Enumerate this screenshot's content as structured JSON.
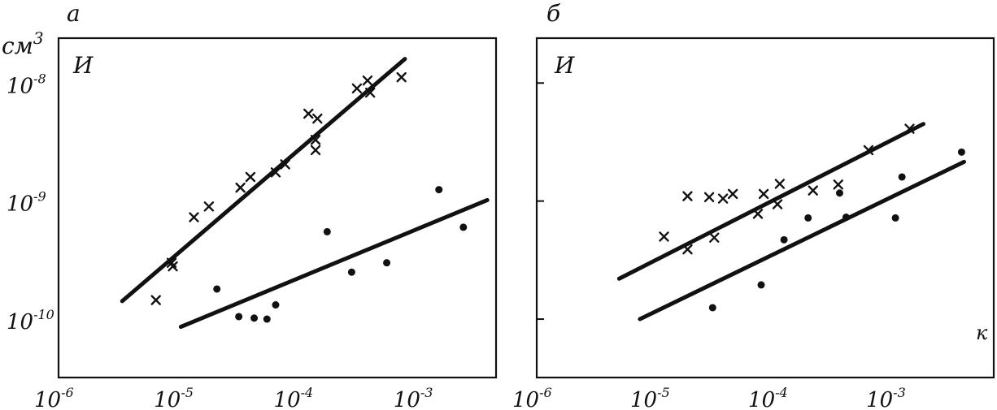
{
  "chart_data": [
    {
      "type": "scatter",
      "panel_label": "а",
      "inner_label": "И",
      "ylabel": "см",
      "ylabel_power": "3",
      "xlabel": "",
      "x_scale": "log",
      "y_scale": "log",
      "xlim": [
        1e-06,
        0.0045
      ],
      "ylim": [
        3.2e-11,
        2.4e-08
      ],
      "x_ticks": [
        {
          "value": 1e-06,
          "base": "10",
          "exp": "-6"
        },
        {
          "value": 1e-05,
          "base": "10",
          "exp": "-5"
        },
        {
          "value": 0.0001,
          "base": "10",
          "exp": "-4"
        },
        {
          "value": 0.001,
          "base": "10",
          "exp": "-3"
        }
      ],
      "y_ticks": [
        {
          "value": 1e-08,
          "base": "10",
          "exp": "-8"
        },
        {
          "value": 1e-09,
          "base": "10",
          "exp": "-9"
        },
        {
          "value": 1e-10,
          "base": "10",
          "exp": "-10"
        }
      ],
      "grid": false,
      "series": [
        {
          "marker": "x",
          "points": [
            {
              "x": 6.5e-06,
              "y": 1.45e-10
            },
            {
              "x": 9e-06,
              "y": 2.8e-10
            },
            {
              "x": 8.8e-06,
              "y": 3e-10
            },
            {
              "x": 1.35e-05,
              "y": 7.3e-10
            },
            {
              "x": 1.8e-05,
              "y": 9e-10
            },
            {
              "x": 3.3e-05,
              "y": 1.3e-09
            },
            {
              "x": 4e-05,
              "y": 1.6e-09
            },
            {
              "x": 6.5e-05,
              "y": 1.75e-09
            },
            {
              "x": 7.8e-05,
              "y": 2.05e-09
            },
            {
              "x": 0.000122,
              "y": 5.5e-09
            },
            {
              "x": 0.000145,
              "y": 5e-09
            },
            {
              "x": 0.00014,
              "y": 3.3e-09
            },
            {
              "x": 0.00014,
              "y": 2.7e-09
            },
            {
              "x": 0.00031,
              "y": 9e-09
            },
            {
              "x": 0.00038,
              "y": 1.05e-08
            },
            {
              "x": 0.0004,
              "y": 8.3e-09
            },
            {
              "x": 0.00073,
              "y": 1.12e-08
            }
          ],
          "fit": {
            "x": [
              3.4e-06,
              0.00078
            ],
            "y": [
              1.42e-10,
              1.6e-08
            ]
          }
        },
        {
          "marker": "dot",
          "points": [
            {
              "x": 2.1e-05,
              "y": 1.8e-10
            },
            {
              "x": 3.2e-05,
              "y": 1.05e-10
            },
            {
              "x": 4.3e-05,
              "y": 1.02e-10
            },
            {
              "x": 5.5e-05,
              "y": 1e-10
            },
            {
              "x": 6.5e-05,
              "y": 1.32e-10
            },
            {
              "x": 0.000175,
              "y": 5.5e-10
            },
            {
              "x": 0.00028,
              "y": 2.5e-10
            },
            {
              "x": 0.00055,
              "y": 3e-10
            },
            {
              "x": 0.0015,
              "y": 1.25e-09
            },
            {
              "x": 0.0024,
              "y": 6e-10
            }
          ],
          "fit": {
            "x": [
              1.05e-05,
              0.0038
            ],
            "y": [
              8.6e-11,
              1.02e-09
            ]
          }
        }
      ]
    },
    {
      "type": "scatter",
      "panel_label": "б",
      "inner_label": "И",
      "xlabel": "к",
      "ylabel": "",
      "x_scale": "log",
      "y_scale": "log",
      "xlim": [
        1e-06,
        0.0075
      ],
      "ylim": [
        3.2e-11,
        2.4e-08
      ],
      "x_ticks": [
        {
          "value": 1e-06,
          "base": "10",
          "exp": "-6"
        },
        {
          "value": 1e-05,
          "base": "10",
          "exp": "-5"
        },
        {
          "value": 0.0001,
          "base": "10",
          "exp": "-4"
        },
        {
          "value": 0.001,
          "base": "10",
          "exp": "-3"
        }
      ],
      "y_ticks": [
        {
          "value": 1e-08,
          "base": "",
          "exp": ""
        },
        {
          "value": 1e-09,
          "base": "",
          "exp": ""
        },
        {
          "value": 1e-10,
          "base": "",
          "exp": ""
        }
      ],
      "grid": false,
      "series": [
        {
          "marker": "x",
          "points": [
            {
              "x": 1.2e-05,
              "y": 5e-10
            },
            {
              "x": 1.9e-05,
              "y": 1.1e-09
            },
            {
              "x": 1.9e-05,
              "y": 3.9e-10
            },
            {
              "x": 2.9e-05,
              "y": 1.08e-09
            },
            {
              "x": 3.2e-05,
              "y": 4.9e-10
            },
            {
              "x": 3.8e-05,
              "y": 1.05e-09
            },
            {
              "x": 4.6e-05,
              "y": 1.15e-09
            },
            {
              "x": 7.5e-05,
              "y": 7.8e-10
            },
            {
              "x": 8.4e-05,
              "y": 1.15e-09
            },
            {
              "x": 0.00011,
              "y": 9.4e-10
            },
            {
              "x": 0.000115,
              "y": 1.4e-09
            },
            {
              "x": 0.00022,
              "y": 1.23e-09
            },
            {
              "x": 0.00036,
              "y": 1.38e-09
            },
            {
              "x": 0.00065,
              "y": 2.7e-09
            },
            {
              "x": 0.00145,
              "y": 4.1e-09
            }
          ],
          "fit": {
            "x": [
              5e-06,
              0.0019
            ],
            "y": [
              2.2e-10,
              4.5e-09
            ]
          }
        },
        {
          "marker": "dot",
          "points": [
            {
              "x": 3.1e-05,
              "y": 1.25e-10
            },
            {
              "x": 8e-05,
              "y": 1.95e-10
            },
            {
              "x": 0.000125,
              "y": 4.7e-10
            },
            {
              "x": 0.0002,
              "y": 7.2e-10
            },
            {
              "x": 0.00037,
              "y": 1.17e-09
            },
            {
              "x": 0.00042,
              "y": 7.3e-10
            },
            {
              "x": 0.0011,
              "y": 7.2e-10
            },
            {
              "x": 0.00125,
              "y": 1.6e-09
            },
            {
              "x": 0.004,
              "y": 2.6e-09
            }
          ],
          "fit": {
            "x": [
              7.5e-06,
              0.0042
            ],
            "y": [
              1e-10,
              2.15e-09
            ]
          }
        }
      ]
    }
  ]
}
